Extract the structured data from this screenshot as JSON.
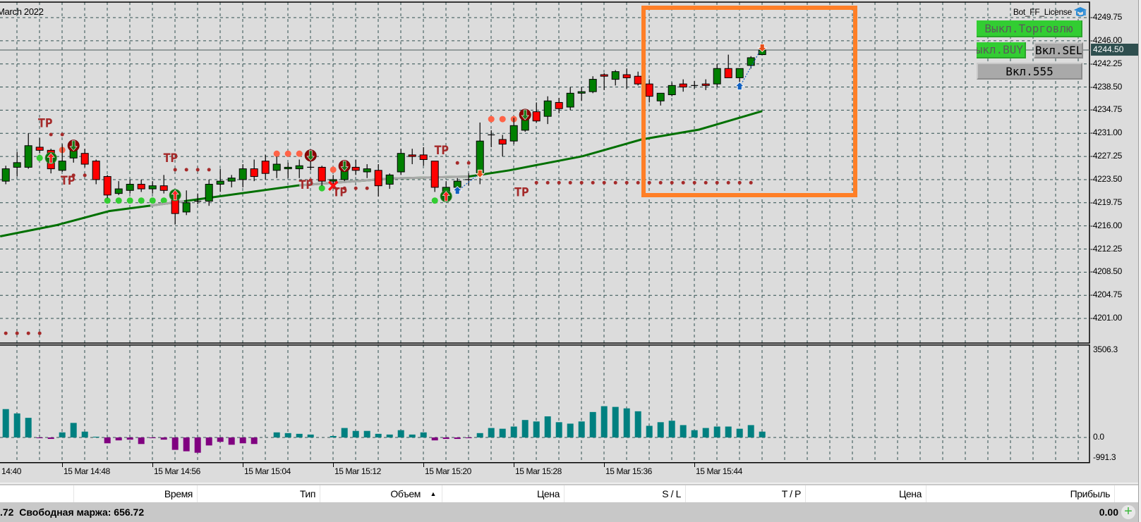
{
  "chart": {
    "period_label": "March 2022",
    "indicator_name": "Bot_FF_License",
    "current_price": "4244.50",
    "tp_label": "TP",
    "colors": {
      "bull": "#008000",
      "bear": "#ff0000",
      "ma": "#007000",
      "ma_alt": "#a8a8a8",
      "grid": "#2f4f4f",
      "bg": "#dcdcdc",
      "hist_pos": "#008080",
      "hist_neg": "#800080",
      "highlight_box": "#ff7f27"
    },
    "price_axis": [
      "4249.75",
      "4246.00",
      "4242.25",
      "4238.50",
      "4234.75",
      "4231.00",
      "4227.25",
      "4223.50",
      "4219.75",
      "4216.00",
      "4212.25",
      "4208.50",
      "4204.75",
      "4201.00"
    ],
    "ohlc": [
      [
        4223.25,
        4225.75,
        4222.75,
        4225.25
      ],
      [
        4225.5,
        4228.0,
        4224.0,
        4226.25
      ],
      [
        4225.5,
        4231.0,
        4225.25,
        4229.0
      ],
      [
        4228.75,
        4230.25,
        4227.75,
        4228.25
      ],
      [
        4228.25,
        4228.5,
        4224.5,
        4225.25
      ],
      [
        4225.0,
        4229.25,
        4224.75,
        4226.5
      ],
      [
        4227.0,
        4229.5,
        4226.25,
        4228.75
      ],
      [
        4227.75,
        4228.5,
        4225.5,
        4226.0
      ],
      [
        4226.5,
        4226.75,
        4222.75,
        4223.5
      ],
      [
        4224.0,
        4224.25,
        4220.5,
        4221.0
      ],
      [
        4221.25,
        4223.25,
        4221.0,
        4222.0
      ],
      [
        4221.75,
        4223.5,
        4221.25,
        4222.75
      ],
      [
        4222.75,
        4223.5,
        4221.5,
        4222.0
      ],
      [
        4222.0,
        4223.25,
        4221.25,
        4222.5
      ],
      [
        4222.5,
        4224.25,
        4221.25,
        4221.75
      ],
      [
        4221.25,
        4221.75,
        4216.25,
        4218.0
      ],
      [
        4218.25,
        4221.75,
        4217.75,
        4219.75
      ],
      [
        4220.0,
        4221.25,
        4219.5,
        4220.0
      ],
      [
        4220.0,
        4223.5,
        4219.25,
        4222.75
      ],
      [
        4222.75,
        4225.25,
        4221.5,
        4223.25
      ],
      [
        4223.25,
        4224.25,
        4222.25,
        4223.75
      ],
      [
        4223.5,
        4226.0,
        4222.25,
        4225.25
      ],
      [
        4225.25,
        4226.75,
        4223.25,
        4224.0
      ],
      [
        4226.5,
        4227.5,
        4223.5,
        4224.5
      ],
      [
        4225.0,
        4227.25,
        4223.75,
        4226.0
      ],
      [
        4225.25,
        4226.25,
        4223.75,
        4225.5
      ],
      [
        4225.25,
        4226.75,
        4223.75,
        4225.75
      ],
      [
        4225.5,
        4227.25,
        4225.0,
        4225.5
      ],
      [
        4225.5,
        4225.75,
        4222.5,
        4223.25
      ],
      [
        4223.25,
        4224.25,
        4222.75,
        4223.5
      ],
      [
        4223.5,
        4226.0,
        4223.25,
        4225.75
      ],
      [
        4225.5,
        4226.75,
        4224.25,
        4225.0
      ],
      [
        4224.75,
        4226.0,
        4223.75,
        4225.25
      ],
      [
        4225.0,
        4226.0,
        4220.75,
        4222.5
      ],
      [
        4222.75,
        4224.5,
        4222.0,
        4224.25
      ],
      [
        4224.75,
        4228.5,
        4224.25,
        4227.75
      ],
      [
        4227.5,
        4228.5,
        4226.0,
        4227.25
      ],
      [
        4227.5,
        4228.75,
        4225.75,
        4226.75
      ],
      [
        4226.5,
        4226.5,
        4221.5,
        4222.25
      ],
      [
        4221.25,
        4223.25,
        4220.75,
        4222.25
      ],
      [
        4222.25,
        4223.75,
        4221.25,
        4223.25
      ],
      [
        4223.5,
        4224.5,
        4222.5,
        4223.5
      ],
      [
        4224.25,
        4232.75,
        4222.75,
        4229.75
      ],
      [
        4230.75,
        4231.5,
        4228.75,
        4230.75
      ],
      [
        4230.0,
        4230.75,
        4227.25,
        4229.25
      ],
      [
        4229.75,
        4233.5,
        4229.25,
        4232.25
      ],
      [
        4231.5,
        4234.75,
        4231.25,
        4234.5
      ],
      [
        4234.5,
        4236.0,
        4232.75,
        4233.0
      ],
      [
        4233.75,
        4237.0,
        4232.5,
        4236.25
      ],
      [
        4236.0,
        4236.75,
        4234.25,
        4235.0
      ],
      [
        4235.25,
        4238.5,
        4234.75,
        4237.5
      ],
      [
        4237.5,
        4238.5,
        4236.25,
        4237.75
      ],
      [
        4237.75,
        4240.25,
        4237.5,
        4239.75
      ],
      [
        4240.5,
        4240.75,
        4238.0,
        4240.25
      ],
      [
        4239.75,
        4241.25,
        4238.75,
        4241.0
      ],
      [
        4240.5,
        4241.5,
        4238.25,
        4240.0
      ],
      [
        4240.25,
        4241.0,
        4238.75,
        4239.0
      ],
      [
        4239.0,
        4239.75,
        4236.0,
        4237.0
      ],
      [
        4236.25,
        4237.5,
        4235.5,
        4237.5
      ],
      [
        4237.25,
        4239.25,
        4237.0,
        4238.75
      ],
      [
        4239.0,
        4239.75,
        4237.75,
        4238.5
      ],
      [
        4238.75,
        4239.5,
        4238.25,
        4238.75
      ],
      [
        4239.0,
        4239.75,
        4238.0,
        4238.75
      ],
      [
        4239.0,
        4242.25,
        4238.5,
        4241.5
      ],
      [
        4241.5,
        4243.75,
        4240.0,
        4240.0
      ],
      [
        4240.0,
        4241.5,
        4238.75,
        4241.5
      ],
      [
        4242.0,
        4243.5,
        4241.5,
        4243.25
      ],
      [
        4243.75,
        4244.75,
        4243.75,
        4244.5
      ]
    ],
    "moving_average": [
      [
        -0.5,
        4214.3
      ],
      [
        4.45,
        4216.1
      ],
      [
        9.16,
        4218.4
      ],
      [
        15.8,
        4220.0
      ],
      [
        25.9,
        4222.55
      ],
      [
        34.3,
        4223.7
      ],
      [
        41,
        4224.0
      ],
      [
        44.6,
        4225.0
      ],
      [
        51.1,
        4227.3
      ],
      [
        56.3,
        4230.0
      ],
      [
        61.4,
        4231.6
      ],
      [
        67,
        4234.6
      ]
    ],
    "moving_average_gray_ranges": [
      [
        12.8,
        15.8
      ],
      [
        26,
        41
      ]
    ],
    "tp_markers": [
      [
        3.5,
        4232.8
      ],
      [
        5.5,
        4223.5
      ],
      [
        14.6,
        4227.15
      ],
      [
        26.6,
        4222.8
      ],
      [
        29.6,
        4221.6
      ],
      [
        38.6,
        4228.4
      ],
      [
        45.7,
        4221.6
      ]
    ],
    "level_dots": [
      {
        "color": "#a52a2a",
        "from": 4,
        "to": 5,
        "price": 4230.8
      },
      {
        "color": "#a52a2a",
        "from": 6,
        "to": 7,
        "price": 4224.2
      },
      {
        "color": "#a52a2a",
        "from": 15,
        "to": 18,
        "price": 4225.1
      },
      {
        "color": "#a52a2a",
        "from": 27,
        "to": 27,
        "price": 4223.4
      },
      {
        "color": "#a52a2a",
        "from": 30,
        "to": 32,
        "price": 4222.1
      },
      {
        "color": "#a52a2a",
        "from": 40,
        "to": 42,
        "price": 4226.2
      },
      {
        "color": "#a52a2a",
        "from": 47,
        "to": 66,
        "price": 4223.0
      },
      {
        "color": "#a52a2a",
        "from": 0,
        "to": 3,
        "price": 4198.6
      },
      {
        "color": "#ff6347",
        "from": 5,
        "to": 5,
        "price": 4228.3,
        "big": true
      },
      {
        "color": "#ff6347",
        "from": 24,
        "to": 26,
        "price": 4227.7,
        "big": true
      },
      {
        "color": "#ff6347",
        "from": 29,
        "to": 29,
        "price": 4225.1,
        "big": true
      },
      {
        "color": "#ff6347",
        "from": 43,
        "to": 46,
        "price": 4233.3,
        "big": true
      },
      {
        "color": "#32cd32",
        "from": 3,
        "to": 3,
        "price": 4227.0,
        "big": true
      },
      {
        "color": "#32cd32",
        "from": 9,
        "to": 14,
        "price": 4220.1,
        "big": true
      },
      {
        "color": "#32cd32",
        "from": 28,
        "to": 28,
        "price": 4222.1,
        "big": true
      },
      {
        "color": "#32cd32",
        "from": 38,
        "to": 38,
        "price": 4220.1,
        "big": true
      }
    ],
    "signals": [
      {
        "dir": "up",
        "idx": 4,
        "price": 4227.0
      },
      {
        "dir": "down",
        "idx": 6,
        "price": 4229.0
      },
      {
        "dir": "up",
        "idx": 15,
        "price": 4221.0
      },
      {
        "dir": "down",
        "idx": 27,
        "price": 4227.4
      },
      {
        "dir": "down",
        "idx": 30,
        "price": 4225.7
      },
      {
        "dir": "up",
        "idx": 39,
        "price": 4220.8
      },
      {
        "dir": "down",
        "idx": 46,
        "price": 4234.0
      }
    ],
    "cancel_marks": [
      {
        "idx": 29,
        "price": 4222.5
      }
    ],
    "trades": [
      {
        "entry": [
          40,
          4221.6
        ],
        "exit": [
          42,
          4224.6
        ]
      },
      {
        "entry": [
          65,
          4238.5
        ],
        "exit": [
          67,
          4245.0
        ]
      }
    ]
  },
  "subwindow": {
    "axis": [
      "3506.3",
      "0.0",
      "-991.3"
    ],
    "range": [
      -991.3,
      3506.3
    ],
    "histogram": [
      1139,
      964,
      788,
      -29,
      -58,
      204,
      584,
      234,
      30,
      -234,
      -117,
      -88,
      -263,
      -29,
      -88,
      -497,
      -555,
      -613,
      -321,
      -175,
      -292,
      -234,
      -263,
      0,
      204,
      175,
      146,
      117,
      0,
      58,
      380,
      263,
      263,
      146,
      117,
      292,
      117,
      204,
      -117,
      -58,
      -58,
      -29,
      175,
      380,
      350,
      438,
      701,
      642,
      847,
      613,
      555,
      642,
      1022,
      1256,
      1227,
      1168,
      1051,
      467,
      613,
      672,
      496,
      292,
      380,
      438,
      438,
      350,
      496,
      234
    ]
  },
  "time_axis": [
    "14:40",
    "15 Mar 14:48",
    "15 Mar 14:56",
    "15 Mar 15:04",
    "15 Mar 15:12",
    "15 Mar 15:20",
    "15 Mar 15:28",
    "15 Mar 15:36",
    "15 Mar 15:44"
  ],
  "panel": {
    "buttons": {
      "trading": "Выкл.Торговлю",
      "buy": "Выкл.BUY",
      "sell": "Вкл.SELL",
      "b555": "Вкл.555"
    }
  },
  "table": {
    "columns": [
      "",
      "Время",
      "Тип",
      "Объем",
      "Цена",
      "S / L",
      "T / P",
      "Цена",
      "Прибыль"
    ],
    "sort_indicator": "▲"
  },
  "status": {
    "left": ".72  Свободная маржа: 656.72",
    "profit": "0.00"
  }
}
